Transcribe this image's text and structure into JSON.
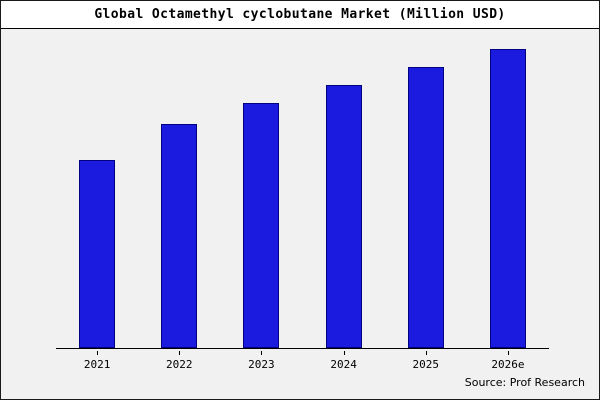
{
  "window": {
    "background_color": "#f1f1f1",
    "border_color": "#1a1a1a"
  },
  "header": {
    "title": "Global Octamethyl cyclobutane Market (Million USD)"
  },
  "footer": {
    "source": "Source: Prof Research"
  },
  "chart_data": {
    "type": "bar",
    "title": "Global Octamethyl cyclobutane Market (Million USD)",
    "categories": [
      "2021",
      "2022",
      "2023",
      "2024",
      "2025",
      "2026e"
    ],
    "values": [
      63,
      75,
      82,
      88,
      94,
      100
    ],
    "values_estimated": true,
    "xlabel": "",
    "ylabel": "",
    "ylim": [
      0,
      100
    ],
    "y_axis_labels_visible": false,
    "grid": false,
    "legend_position": "none",
    "bar_color": "#1b1be0",
    "bar_border_color": "#000080",
    "axis_color": "#000000"
  }
}
